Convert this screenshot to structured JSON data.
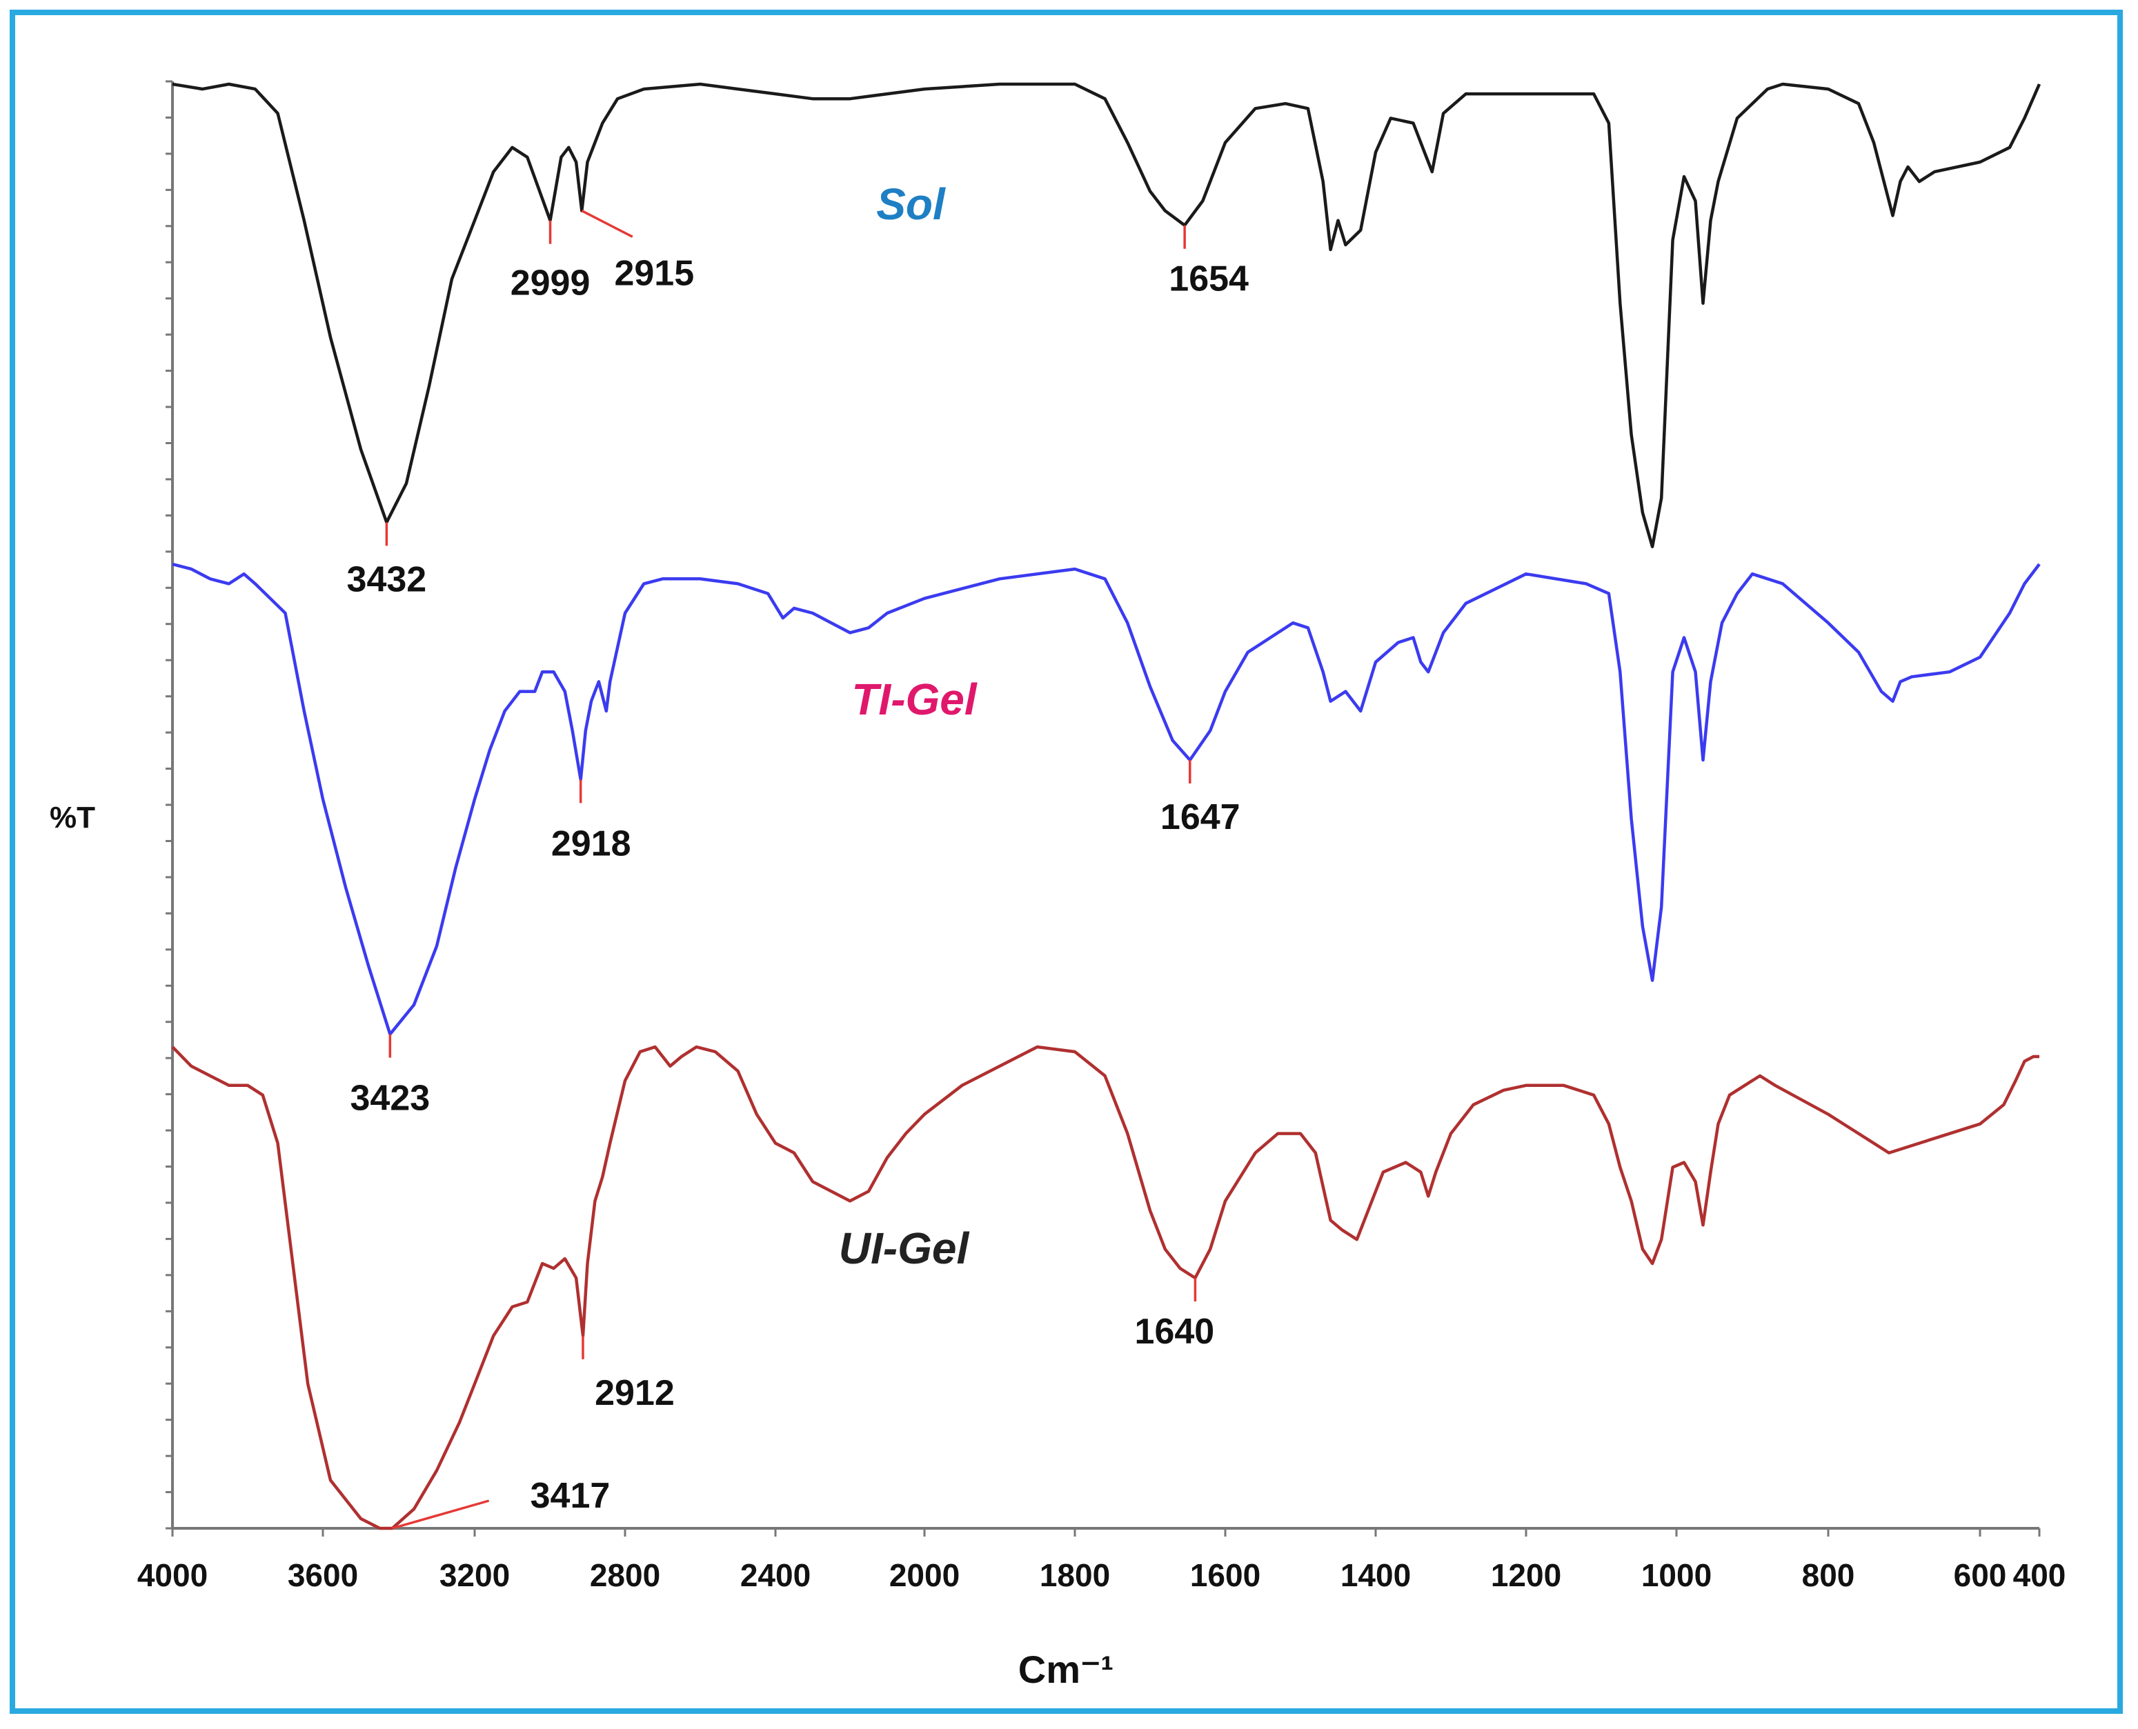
{
  "chart_data": {
    "type": "line",
    "title": "",
    "xlabel": "Cm⁻¹",
    "ylabel": "%T",
    "x_reversed": true,
    "xlim": [
      4000,
      400
    ],
    "x_ticks": [
      4000,
      3600,
      3200,
      2800,
      2400,
      2000,
      1800,
      1600,
      1400,
      1200,
      1000,
      800,
      600,
      400
    ],
    "ylim": [
      0,
      100
    ],
    "y_tick_labels": false,
    "grid": false,
    "legend": "inline labels next to curves",
    "series": [
      {
        "name": "Sol",
        "color": "#1a1a1a",
        "label_color": "#1e7fc4",
        "points": [
          [
            4000,
            100
          ],
          [
            3920,
            99
          ],
          [
            3850,
            100
          ],
          [
            3780,
            99
          ],
          [
            3720,
            94
          ],
          [
            3650,
            72
          ],
          [
            3580,
            48
          ],
          [
            3500,
            25
          ],
          [
            3432,
            10
          ],
          [
            3380,
            18
          ],
          [
            3320,
            38
          ],
          [
            3260,
            60
          ],
          [
            3200,
            72
          ],
          [
            3150,
            82
          ],
          [
            3100,
            87
          ],
          [
            3060,
            85
          ],
          [
            2999,
            72
          ],
          [
            2970,
            85
          ],
          [
            2950,
            87
          ],
          [
            2930,
            84
          ],
          [
            2915,
            74
          ],
          [
            2900,
            84
          ],
          [
            2880,
            88
          ],
          [
            2860,
            92
          ],
          [
            2820,
            97
          ],
          [
            2750,
            99
          ],
          [
            2600,
            100
          ],
          [
            2500,
            99
          ],
          [
            2400,
            98
          ],
          [
            2300,
            97
          ],
          [
            2200,
            97
          ],
          [
            2100,
            98
          ],
          [
            2000,
            99
          ],
          [
            1900,
            100
          ],
          [
            1800,
            100
          ],
          [
            1760,
            97
          ],
          [
            1730,
            88
          ],
          [
            1700,
            78
          ],
          [
            1680,
            74
          ],
          [
            1654,
            71
          ],
          [
            1630,
            76
          ],
          [
            1600,
            88
          ],
          [
            1560,
            95
          ],
          [
            1520,
            96
          ],
          [
            1490,
            95
          ],
          [
            1470,
            80
          ],
          [
            1460,
            66
          ],
          [
            1450,
            72
          ],
          [
            1440,
            67
          ],
          [
            1420,
            70
          ],
          [
            1400,
            86
          ],
          [
            1380,
            93
          ],
          [
            1350,
            92
          ],
          [
            1335,
            86
          ],
          [
            1325,
            82
          ],
          [
            1310,
            94
          ],
          [
            1280,
            98
          ],
          [
            1200,
            98
          ],
          [
            1110,
            98
          ],
          [
            1090,
            92
          ],
          [
            1075,
            55
          ],
          [
            1060,
            28
          ],
          [
            1045,
            12
          ],
          [
            1032,
            5
          ],
          [
            1020,
            15
          ],
          [
            1005,
            68
          ],
          [
            990,
            81
          ],
          [
            975,
            76
          ],
          [
            965,
            55
          ],
          [
            955,
            72
          ],
          [
            945,
            80
          ],
          [
            920,
            93
          ],
          [
            900,
            96
          ],
          [
            880,
            99
          ],
          [
            860,
            100
          ],
          [
            800,
            99
          ],
          [
            760,
            96
          ],
          [
            740,
            88
          ],
          [
            720,
            76
          ],
          [
            715,
            73
          ],
          [
            705,
            80
          ],
          [
            695,
            83
          ],
          [
            680,
            80
          ],
          [
            660,
            82
          ],
          [
            600,
            84
          ],
          [
            500,
            87
          ],
          [
            450,
            93
          ],
          [
            400,
            100
          ]
        ]
      },
      {
        "name": "TI-Gel",
        "color": "#3b3bf0",
        "label_color": "#e0186c",
        "points": [
          [
            4000,
            100
          ],
          [
            3950,
            99
          ],
          [
            3900,
            97
          ],
          [
            3850,
            96
          ],
          [
            3810,
            98
          ],
          [
            3780,
            96
          ],
          [
            3740,
            93
          ],
          [
            3700,
            90
          ],
          [
            3650,
            70
          ],
          [
            3600,
            52
          ],
          [
            3540,
            34
          ],
          [
            3480,
            18
          ],
          [
            3423,
            4
          ],
          [
            3360,
            10
          ],
          [
            3300,
            22
          ],
          [
            3250,
            38
          ],
          [
            3200,
            52
          ],
          [
            3160,
            62
          ],
          [
            3120,
            70
          ],
          [
            3080,
            74
          ],
          [
            3040,
            74
          ],
          [
            3020,
            78
          ],
          [
            2990,
            78
          ],
          [
            2960,
            74
          ],
          [
            2940,
            66
          ],
          [
            2918,
            56
          ],
          [
            2905,
            66
          ],
          [
            2890,
            72
          ],
          [
            2880,
            74
          ],
          [
            2870,
            76
          ],
          [
            2850,
            70
          ],
          [
            2840,
            76
          ],
          [
            2800,
            90
          ],
          [
            2750,
            96
          ],
          [
            2700,
            97
          ],
          [
            2600,
            97
          ],
          [
            2500,
            96
          ],
          [
            2420,
            94
          ],
          [
            2380,
            89
          ],
          [
            2350,
            91
          ],
          [
            2300,
            90
          ],
          [
            2250,
            88
          ],
          [
            2200,
            86
          ],
          [
            2150,
            87
          ],
          [
            2100,
            90
          ],
          [
            2000,
            93
          ],
          [
            1900,
            97
          ],
          [
            1800,
            99
          ],
          [
            1760,
            97
          ],
          [
            1730,
            88
          ],
          [
            1700,
            75
          ],
          [
            1670,
            64
          ],
          [
            1647,
            60
          ],
          [
            1620,
            66
          ],
          [
            1600,
            74
          ],
          [
            1570,
            82
          ],
          [
            1540,
            85
          ],
          [
            1510,
            88
          ],
          [
            1490,
            87
          ],
          [
            1470,
            78
          ],
          [
            1460,
            72
          ],
          [
            1440,
            74
          ],
          [
            1420,
            70
          ],
          [
            1400,
            80
          ],
          [
            1370,
            84
          ],
          [
            1350,
            85
          ],
          [
            1340,
            80
          ],
          [
            1330,
            78
          ],
          [
            1310,
            86
          ],
          [
            1280,
            92
          ],
          [
            1200,
            98
          ],
          [
            1120,
            96
          ],
          [
            1090,
            94
          ],
          [
            1075,
            78
          ],
          [
            1060,
            48
          ],
          [
            1045,
            26
          ],
          [
            1032,
            15
          ],
          [
            1020,
            30
          ],
          [
            1005,
            78
          ],
          [
            990,
            85
          ],
          [
            975,
            78
          ],
          [
            965,
            60
          ],
          [
            955,
            76
          ],
          [
            940,
            88
          ],
          [
            920,
            94
          ],
          [
            900,
            98
          ],
          [
            860,
            96
          ],
          [
            800,
            88
          ],
          [
            760,
            82
          ],
          [
            730,
            74
          ],
          [
            715,
            72
          ],
          [
            705,
            76
          ],
          [
            690,
            77
          ],
          [
            640,
            78
          ],
          [
            600,
            81
          ],
          [
            500,
            90
          ],
          [
            450,
            96
          ],
          [
            400,
            100
          ]
        ]
      },
      {
        "name": "UI-Gel",
        "color": "#b03030",
        "label_color": "#222222",
        "points": [
          [
            4000,
            100
          ],
          [
            3950,
            96
          ],
          [
            3900,
            94
          ],
          [
            3850,
            92
          ],
          [
            3800,
            92
          ],
          [
            3760,
            90
          ],
          [
            3720,
            80
          ],
          [
            3680,
            55
          ],
          [
            3640,
            30
          ],
          [
            3580,
            10
          ],
          [
            3500,
            2
          ],
          [
            3450,
            0
          ],
          [
            3417,
            0
          ],
          [
            3360,
            4
          ],
          [
            3300,
            12
          ],
          [
            3240,
            22
          ],
          [
            3200,
            30
          ],
          [
            3150,
            40
          ],
          [
            3100,
            46
          ],
          [
            3060,
            47
          ],
          [
            3020,
            55
          ],
          [
            2990,
            54
          ],
          [
            2960,
            56
          ],
          [
            2930,
            52
          ],
          [
            2912,
            40
          ],
          [
            2900,
            55
          ],
          [
            2880,
            68
          ],
          [
            2860,
            73
          ],
          [
            2840,
            80
          ],
          [
            2800,
            93
          ],
          [
            2760,
            99
          ],
          [
            2720,
            100
          ],
          [
            2680,
            96
          ],
          [
            2650,
            98
          ],
          [
            2610,
            100
          ],
          [
            2560,
            99
          ],
          [
            2500,
            95
          ],
          [
            2450,
            86
          ],
          [
            2400,
            80
          ],
          [
            2350,
            78
          ],
          [
            2300,
            72
          ],
          [
            2250,
            70
          ],
          [
            2200,
            68
          ],
          [
            2150,
            70
          ],
          [
            2100,
            77
          ],
          [
            2050,
            82
          ],
          [
            2000,
            86
          ],
          [
            1950,
            92
          ],
          [
            1900,
            96
          ],
          [
            1850,
            100
          ],
          [
            1800,
            99
          ],
          [
            1760,
            94
          ],
          [
            1730,
            82
          ],
          [
            1700,
            66
          ],
          [
            1680,
            58
          ],
          [
            1660,
            54
          ],
          [
            1640,
            52
          ],
          [
            1620,
            58
          ],
          [
            1600,
            68
          ],
          [
            1560,
            78
          ],
          [
            1530,
            82
          ],
          [
            1500,
            82
          ],
          [
            1480,
            78
          ],
          [
            1460,
            64
          ],
          [
            1445,
            62
          ],
          [
            1425,
            60
          ],
          [
            1410,
            66
          ],
          [
            1390,
            74
          ],
          [
            1360,
            76
          ],
          [
            1340,
            74
          ],
          [
            1330,
            69
          ],
          [
            1320,
            74
          ],
          [
            1300,
            82
          ],
          [
            1270,
            88
          ],
          [
            1230,
            91
          ],
          [
            1200,
            92
          ],
          [
            1150,
            92
          ],
          [
            1110,
            90
          ],
          [
            1090,
            84
          ],
          [
            1075,
            75
          ],
          [
            1060,
            68
          ],
          [
            1045,
            58
          ],
          [
            1032,
            55
          ],
          [
            1020,
            60
          ],
          [
            1005,
            75
          ],
          [
            990,
            76
          ],
          [
            975,
            72
          ],
          [
            965,
            63
          ],
          [
            955,
            74
          ],
          [
            945,
            84
          ],
          [
            930,
            90
          ],
          [
            910,
            92
          ],
          [
            890,
            94
          ],
          [
            870,
            92
          ],
          [
            800,
            86
          ],
          [
            760,
            82
          ],
          [
            720,
            78
          ],
          [
            680,
            80
          ],
          [
            600,
            84
          ],
          [
            520,
            88
          ],
          [
            480,
            93
          ],
          [
            450,
            97
          ],
          [
            420,
            98
          ],
          [
            400,
            98
          ]
        ]
      }
    ],
    "annotations": [
      {
        "series": "Sol",
        "x": 3432,
        "label": "3432"
      },
      {
        "series": "Sol",
        "x": 2999,
        "label": "2999"
      },
      {
        "series": "Sol",
        "x": 2915,
        "label": "2915"
      },
      {
        "series": "Sol",
        "x": 1654,
        "label": "1654"
      },
      {
        "series": "TI-Gel",
        "x": 3423,
        "label": "3423"
      },
      {
        "series": "TI-Gel",
        "x": 2918,
        "label": "2918"
      },
      {
        "series": "TI-Gel",
        "x": 1647,
        "label": "1647"
      },
      {
        "series": "UI-Gel",
        "x": 3417,
        "label": "3417"
      },
      {
        "series": "UI-Gel",
        "x": 2912,
        "label": "2912"
      },
      {
        "series": "UI-Gel",
        "x": 1640,
        "label": "1640"
      }
    ]
  }
}
